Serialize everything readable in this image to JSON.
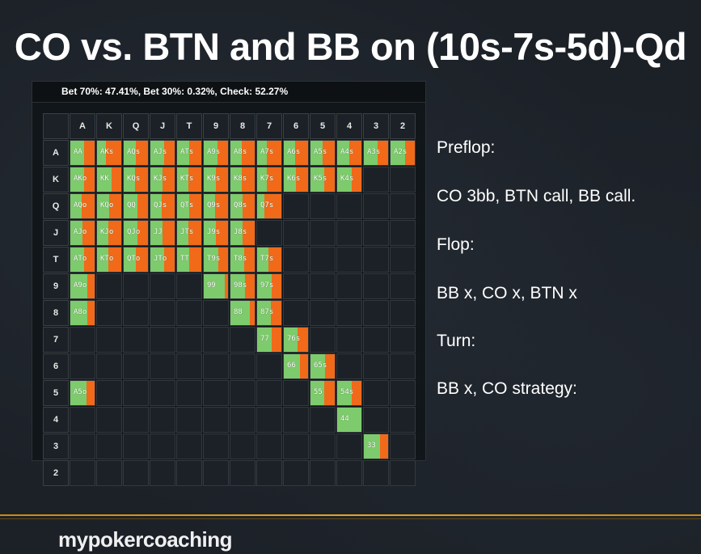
{
  "slide": {
    "title": "CO vs. BTN and BB on (10s-7s-5d)-Qd",
    "logo_text": "mypokercoaching"
  },
  "panel": {
    "summary": "Bet 70%: 47.41%, Bet 30%: 0.32%, Check: 52.27%"
  },
  "colors": {
    "check": "#7dcb6c",
    "bet": "#f06a1a",
    "accent_line": "#e0a52a"
  },
  "notes": {
    "preflop_heading": "Preflop:",
    "preflop_action": "CO 3bb, BTN call, BB call.",
    "flop_heading": "Flop:",
    "flop_action": "BB x, CO x, BTN x",
    "turn_heading": "Turn:",
    "turn_action": "BB x, CO strategy:"
  },
  "matrix": {
    "ranks": [
      "A",
      "K",
      "Q",
      "J",
      "T",
      "9",
      "8",
      "7",
      "6",
      "5",
      "4",
      "3",
      "2"
    ],
    "cells": [
      {
        "r": 0,
        "c": 0,
        "label": "AA",
        "check": 0.55
      },
      {
        "r": 0,
        "c": 1,
        "label": "AKs",
        "check": 0.35
      },
      {
        "r": 0,
        "c": 2,
        "label": "AQs",
        "check": 0.5
      },
      {
        "r": 0,
        "c": 3,
        "label": "AJs",
        "check": 0.55
      },
      {
        "r": 0,
        "c": 4,
        "label": "ATs",
        "check": 0.5
      },
      {
        "r": 0,
        "c": 5,
        "label": "A9s",
        "check": 0.55
      },
      {
        "r": 0,
        "c": 6,
        "label": "A8s",
        "check": 0.45
      },
      {
        "r": 0,
        "c": 7,
        "label": "A7s",
        "check": 0.4
      },
      {
        "r": 0,
        "c": 8,
        "label": "A6s",
        "check": 0.45
      },
      {
        "r": 0,
        "c": 9,
        "label": "A5s",
        "check": 0.5
      },
      {
        "r": 0,
        "c": 10,
        "label": "A4s",
        "check": 0.5
      },
      {
        "r": 0,
        "c": 11,
        "label": "A3s",
        "check": 0.55
      },
      {
        "r": 0,
        "c": 12,
        "label": "A2s",
        "check": 0.6
      },
      {
        "r": 1,
        "c": 0,
        "label": "AKo",
        "check": 0.55
      },
      {
        "r": 1,
        "c": 1,
        "label": "KK",
        "check": 0.6
      },
      {
        "r": 1,
        "c": 2,
        "label": "KQs",
        "check": 0.45
      },
      {
        "r": 1,
        "c": 3,
        "label": "KJs",
        "check": 0.5
      },
      {
        "r": 1,
        "c": 4,
        "label": "KTs",
        "check": 0.45
      },
      {
        "r": 1,
        "c": 5,
        "label": "K9s",
        "check": 0.5
      },
      {
        "r": 1,
        "c": 6,
        "label": "K8s",
        "check": 0.45
      },
      {
        "r": 1,
        "c": 7,
        "label": "K7s",
        "check": 0.4
      },
      {
        "r": 1,
        "c": 8,
        "label": "K6s",
        "check": 0.5
      },
      {
        "r": 1,
        "c": 9,
        "label": "K5s",
        "check": 0.55
      },
      {
        "r": 1,
        "c": 10,
        "label": "K4s",
        "check": 0.6
      },
      {
        "r": 2,
        "c": 0,
        "label": "AQo",
        "check": 0.45
      },
      {
        "r": 2,
        "c": 1,
        "label": "KQo",
        "check": 0.5
      },
      {
        "r": 2,
        "c": 2,
        "label": "QQ",
        "check": 0.55
      },
      {
        "r": 2,
        "c": 3,
        "label": "QJs",
        "check": 0.45
      },
      {
        "r": 2,
        "c": 4,
        "label": "QTs",
        "check": 0.5
      },
      {
        "r": 2,
        "c": 5,
        "label": "Q9s",
        "check": 0.45
      },
      {
        "r": 2,
        "c": 6,
        "label": "Q8s",
        "check": 0.5
      },
      {
        "r": 2,
        "c": 7,
        "label": "Q7s",
        "check": 0.3
      },
      {
        "r": 3,
        "c": 0,
        "label": "AJo",
        "check": 0.5
      },
      {
        "r": 3,
        "c": 1,
        "label": "KJo",
        "check": 0.45
      },
      {
        "r": 3,
        "c": 2,
        "label": "QJo",
        "check": 0.55
      },
      {
        "r": 3,
        "c": 3,
        "label": "JJ",
        "check": 0.5
      },
      {
        "r": 3,
        "c": 4,
        "label": "JTs",
        "check": 0.45
      },
      {
        "r": 3,
        "c": 5,
        "label": "J9s",
        "check": 0.5
      },
      {
        "r": 3,
        "c": 6,
        "label": "J8s",
        "check": 0.5
      },
      {
        "r": 4,
        "c": 0,
        "label": "ATo",
        "check": 0.55
      },
      {
        "r": 4,
        "c": 1,
        "label": "KTo",
        "check": 0.45
      },
      {
        "r": 4,
        "c": 2,
        "label": "QTo",
        "check": 0.5
      },
      {
        "r": 4,
        "c": 3,
        "label": "JTo",
        "check": 0.55
      },
      {
        "r": 4,
        "c": 4,
        "label": "TT",
        "check": 0.5
      },
      {
        "r": 4,
        "c": 5,
        "label": "T9s",
        "check": 0.6
      },
      {
        "r": 4,
        "c": 6,
        "label": "T8s",
        "check": 0.55
      },
      {
        "r": 4,
        "c": 7,
        "label": "T7s",
        "check": 0.45
      },
      {
        "r": 5,
        "c": 0,
        "label": "A9o",
        "check": 0.7
      },
      {
        "r": 5,
        "c": 5,
        "label": "99",
        "check": 0.85
      },
      {
        "r": 5,
        "c": 6,
        "label": "98s",
        "check": 0.6
      },
      {
        "r": 5,
        "c": 7,
        "label": "97s",
        "check": 0.6
      },
      {
        "r": 6,
        "c": 0,
        "label": "A8o",
        "check": 0.7
      },
      {
        "r": 6,
        "c": 6,
        "label": "88",
        "check": 0.8
      },
      {
        "r": 6,
        "c": 7,
        "label": "87s",
        "check": 0.55
      },
      {
        "r": 7,
        "c": 7,
        "label": "77",
        "check": 0.6
      },
      {
        "r": 7,
        "c": 8,
        "label": "76s",
        "check": 0.55
      },
      {
        "r": 8,
        "c": 8,
        "label": "66",
        "check": 0.65
      },
      {
        "r": 8,
        "c": 9,
        "label": "65s",
        "check": 0.6
      },
      {
        "r": 9,
        "c": 0,
        "label": "A5o",
        "check": 0.65
      },
      {
        "r": 9,
        "c": 9,
        "label": "55",
        "check": 0.55
      },
      {
        "r": 9,
        "c": 10,
        "label": "54s",
        "check": 0.6
      },
      {
        "r": 10,
        "c": 10,
        "label": "44",
        "check": 1.0
      },
      {
        "r": 11,
        "c": 11,
        "label": "33",
        "check": 0.65
      }
    ]
  }
}
